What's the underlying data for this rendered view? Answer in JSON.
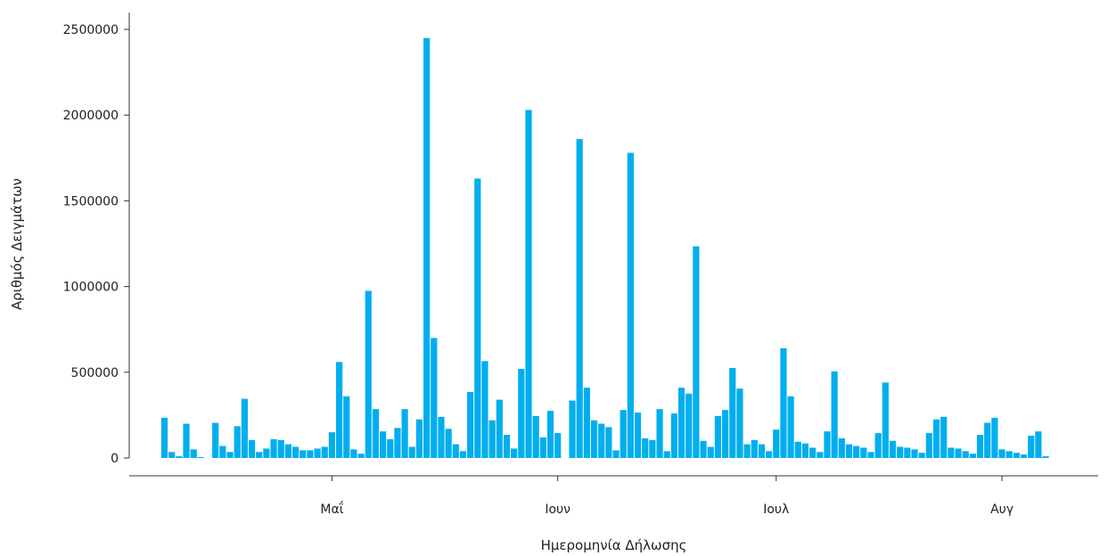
{
  "chart_data": {
    "type": "bar",
    "xlabel": "Ημερομηνία Δήλωσης",
    "ylabel": "Αριθμός Δειγμάτων",
    "ylim": [
      0,
      2500000
    ],
    "yticks": [
      0,
      500000,
      1000000,
      1500000,
      2000000,
      2500000
    ],
    "ytick_labels": [
      "0",
      "500000",
      "1000000",
      "1500000",
      "2000000",
      "2500000"
    ],
    "x_start_date": "2020-04-08",
    "xlim_days": [
      -4.5,
      128.5
    ],
    "xticks": [
      {
        "label": "Μαΐ",
        "date": "2020-05-01"
      },
      {
        "label": "Ιουν",
        "date": "2020-06-01"
      },
      {
        "label": "Ιουλ",
        "date": "2020-07-01"
      },
      {
        "label": "Αυγ",
        "date": "2020-08-01"
      }
    ],
    "bar_color": "#00AEEF",
    "grid": false,
    "values": [
      235000,
      35000,
      10000,
      200000,
      50000,
      5000,
      0,
      205000,
      70000,
      35000,
      185000,
      345000,
      105000,
      35000,
      55000,
      110000,
      105000,
      80000,
      65000,
      45000,
      45000,
      55000,
      65000,
      150000,
      560000,
      360000,
      50000,
      25000,
      975000,
      285000,
      155000,
      110000,
      175000,
      285000,
      65000,
      225000,
      2450000,
      700000,
      240000,
      170000,
      80000,
      40000,
      385000,
      1630000,
      565000,
      220000,
      340000,
      135000,
      55000,
      520000,
      2030000,
      245000,
      120000,
      275000,
      145000,
      0,
      335000,
      1860000,
      410000,
      220000,
      200000,
      180000,
      45000,
      280000,
      1780000,
      265000,
      115000,
      105000,
      285000,
      40000,
      260000,
      410000,
      375000,
      1235000,
      100000,
      65000,
      245000,
      280000,
      525000,
      405000,
      80000,
      105000,
      80000,
      40000,
      165000,
      640000,
      360000,
      95000,
      85000,
      60000,
      35000,
      155000,
      505000,
      115000,
      80000,
      70000,
      60000,
      35000,
      145000,
      440000,
      100000,
      65000,
      60000,
      50000,
      30000,
      145000,
      225000,
      240000,
      60000,
      55000,
      40000,
      25000,
      135000,
      205000,
      235000,
      50000,
      40000,
      30000,
      20000,
      130000,
      155000,
      10000
    ]
  }
}
